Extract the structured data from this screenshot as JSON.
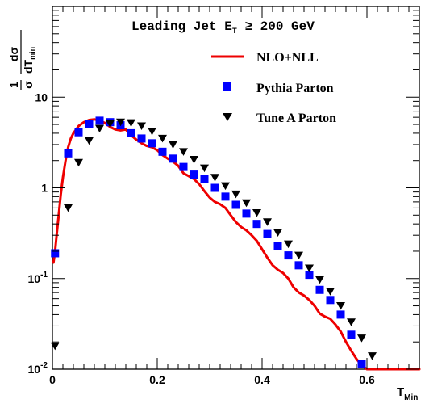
{
  "chart_data": {
    "type": "line",
    "title": "Leading Jet E",
    "title_sub": "T",
    "title_suffix": " ≥ 200 GeV",
    "xlabel": "T",
    "xlabel_sub": "Min",
    "ylabel_num": "1",
    "ylabel_den": "σ",
    "ylabel_dnum": "dσ",
    "ylabel_dden": "dT",
    "ylabel_dden_sub": "min",
    "xlim": [
      0,
      0.7
    ],
    "ylim": [
      0.01,
      100
    ],
    "yscale": "log",
    "grid": false,
    "legend_position": "top-right",
    "x_ticks": [
      0,
      0.2,
      0.4,
      0.6
    ],
    "x_tick_labels": [
      "0",
      "0.2",
      "0.4",
      "0.6"
    ],
    "y_ticks": [
      0.01,
      0.1,
      1,
      10
    ],
    "y_tick_labels": [
      {
        "base": "10",
        "exp": "-2"
      },
      {
        "base": "10",
        "exp": "-1"
      },
      {
        "base": "1",
        "exp": ""
      },
      {
        "base": "10",
        "exp": ""
      }
    ],
    "series": [
      {
        "name": "NLO+NLL",
        "kind": "line",
        "color": "#ee0000",
        "x": [
          0.002,
          0.005,
          0.008,
          0.012,
          0.016,
          0.02,
          0.025,
          0.03,
          0.035,
          0.04,
          0.05,
          0.06,
          0.07,
          0.08,
          0.09,
          0.1,
          0.11,
          0.12,
          0.13,
          0.14,
          0.15,
          0.16,
          0.17,
          0.18,
          0.19,
          0.2,
          0.21,
          0.22,
          0.23,
          0.24,
          0.25,
          0.26,
          0.27,
          0.28,
          0.29,
          0.3,
          0.31,
          0.32,
          0.33,
          0.34,
          0.35,
          0.36,
          0.37,
          0.38,
          0.39,
          0.4,
          0.41,
          0.42,
          0.43,
          0.44,
          0.45,
          0.46,
          0.47,
          0.48,
          0.49,
          0.5,
          0.51,
          0.52,
          0.53,
          0.54,
          0.55,
          0.56,
          0.57,
          0.58,
          0.59,
          0.6,
          0.61,
          0.62,
          0.63,
          0.64,
          0.65,
          0.66,
          0.67,
          0.68,
          0.69,
          0.7
        ],
        "y": [
          0.15,
          0.2,
          0.3,
          0.5,
          0.85,
          1.3,
          2.0,
          2.8,
          3.5,
          4.0,
          4.8,
          5.3,
          5.6,
          5.7,
          5.5,
          5.2,
          4.7,
          4.4,
          4.3,
          4.4,
          3.8,
          3.4,
          3.1,
          2.9,
          2.8,
          2.6,
          2.3,
          2.1,
          1.95,
          1.75,
          1.45,
          1.35,
          1.25,
          1.1,
          0.92,
          0.78,
          0.7,
          0.66,
          0.6,
          0.5,
          0.42,
          0.37,
          0.34,
          0.3,
          0.26,
          0.21,
          0.17,
          0.14,
          0.125,
          0.115,
          0.1,
          0.08,
          0.07,
          0.065,
          0.058,
          0.05,
          0.041,
          0.038,
          0.036,
          0.031,
          0.026,
          0.02,
          0.016,
          0.013,
          0.011,
          0.0085,
          0.01,
          0.01,
          0.01,
          0.01,
          0.01,
          0.01,
          0.01,
          0.01,
          0.01,
          0.01
        ]
      },
      {
        "name": "Pythia Parton",
        "kind": "marker-square",
        "color": "#0000ff",
        "x": [
          0.005,
          0.03,
          0.05,
          0.07,
          0.09,
          0.11,
          0.13,
          0.15,
          0.17,
          0.19,
          0.21,
          0.23,
          0.25,
          0.27,
          0.29,
          0.31,
          0.33,
          0.35,
          0.37,
          0.39,
          0.41,
          0.43,
          0.45,
          0.47,
          0.49,
          0.51,
          0.53,
          0.55,
          0.57,
          0.59
        ],
        "y": [
          0.19,
          2.4,
          4.1,
          5.1,
          5.5,
          5.3,
          4.9,
          4.0,
          3.5,
          3.1,
          2.5,
          2.1,
          1.7,
          1.4,
          1.25,
          1.0,
          0.8,
          0.65,
          0.52,
          0.4,
          0.31,
          0.23,
          0.18,
          0.14,
          0.11,
          0.075,
          0.058,
          0.04,
          0.024,
          0.0115
        ]
      },
      {
        "name": "Tune A Parton",
        "kind": "marker-triangle-down",
        "color": "#000000",
        "x": [
          0.005,
          0.03,
          0.05,
          0.07,
          0.09,
          0.11,
          0.13,
          0.15,
          0.17,
          0.19,
          0.21,
          0.23,
          0.25,
          0.27,
          0.29,
          0.31,
          0.33,
          0.35,
          0.37,
          0.39,
          0.41,
          0.43,
          0.45,
          0.47,
          0.49,
          0.51,
          0.53,
          0.55,
          0.57,
          0.59,
          0.61
        ],
        "y": [
          0.018,
          0.6,
          1.9,
          3.3,
          4.5,
          5.1,
          5.3,
          5.2,
          4.8,
          4.2,
          3.5,
          3.0,
          2.5,
          2.05,
          1.65,
          1.3,
          1.05,
          0.85,
          0.68,
          0.53,
          0.42,
          0.32,
          0.24,
          0.18,
          0.13,
          0.097,
          0.072,
          0.05,
          0.033,
          0.022,
          0.014
        ]
      }
    ]
  }
}
